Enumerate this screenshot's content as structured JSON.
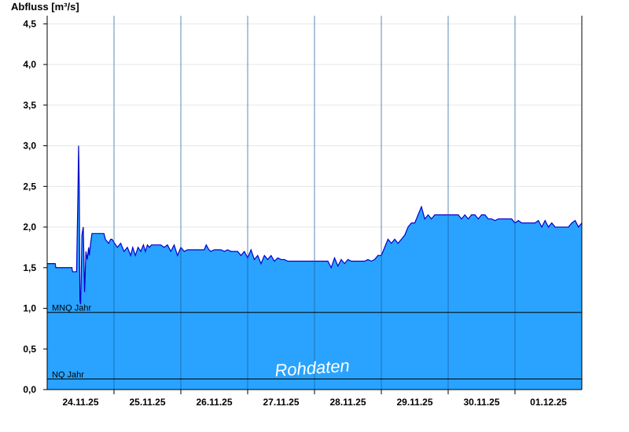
{
  "chart_data": {
    "type": "area",
    "title": "",
    "ylabel": "Abfluss [m³/s]",
    "xlabel": "",
    "ylim": [
      0,
      4.6
    ],
    "xlim": [
      0,
      8.0
    ],
    "yticks": [
      0,
      0.5,
      1.0,
      1.5,
      2.0,
      2.5,
      3.0,
      3.5,
      4.0,
      4.5
    ],
    "ytick_labels": [
      "0,0",
      "0,5",
      "1,0",
      "1,5",
      "2,0",
      "2,5",
      "3,0",
      "3,5",
      "4,0",
      "4,5"
    ],
    "xtick_positions": [
      0.5,
      1.5,
      2.5,
      3.5,
      4.5,
      5.5,
      6.5,
      7.5
    ],
    "xtick_labels": [
      "24.11.25",
      "25.11.25",
      "26.11.25",
      "27.11.25",
      "28.11.25",
      "29.11.25",
      "30.11.25",
      "01.12.25"
    ],
    "day_separators": [
      1,
      2,
      3,
      4,
      5,
      6,
      7
    ],
    "grid": true,
    "series": [
      {
        "name": "",
        "fill_color": "#29a3ff",
        "line_color": "#0000cc",
        "x": [
          0,
          0.12,
          0.13,
          0.37,
          0.38,
          0.44,
          0.46,
          0.47,
          0.48,
          0.49,
          0.5,
          0.51,
          0.52,
          0.54,
          0.55,
          0.56,
          0.58,
          0.6,
          0.62,
          0.63,
          0.65,
          0.67,
          0.68,
          0.7,
          0.85,
          0.87,
          0.92,
          0.95,
          0.97,
          1.05,
          1.1,
          1.15,
          1.2,
          1.25,
          1.28,
          1.32,
          1.36,
          1.4,
          1.44,
          1.47,
          1.5,
          1.53,
          1.56,
          1.6,
          1.65,
          1.7,
          1.75,
          1.8,
          1.85,
          1.9,
          1.95,
          2.0,
          2.05,
          2.1,
          2.15,
          2.2,
          2.35,
          2.38,
          2.42,
          2.45,
          2.5,
          2.6,
          2.65,
          2.7,
          2.75,
          2.85,
          2.9,
          2.95,
          3.0,
          3.05,
          3.1,
          3.15,
          3.2,
          3.25,
          3.3,
          3.35,
          3.4,
          3.45,
          3.5,
          3.55,
          3.6,
          3.7,
          3.8,
          3.9,
          4.0,
          4.2,
          4.25,
          4.3,
          4.35,
          4.4,
          4.45,
          4.5,
          4.55,
          4.6,
          4.65,
          4.7,
          4.75,
          4.8,
          4.85,
          4.9,
          4.95,
          5.0,
          5.05,
          5.1,
          5.15,
          5.2,
          5.25,
          5.3,
          5.35,
          5.4,
          5.45,
          5.5,
          5.55,
          5.6,
          5.65,
          5.7,
          5.75,
          5.8,
          5.85,
          5.9,
          5.95,
          6.0,
          6.05,
          6.1,
          6.15,
          6.2,
          6.25,
          6.3,
          6.35,
          6.4,
          6.45,
          6.5,
          6.55,
          6.6,
          6.65,
          6.7,
          6.75,
          6.8,
          6.85,
          6.9,
          6.95,
          7.0,
          7.05,
          7.1,
          7.15,
          7.2,
          7.25,
          7.3,
          7.35,
          7.4,
          7.45,
          7.5,
          7.55,
          7.6,
          7.65,
          7.7,
          7.75,
          7.8,
          7.85,
          7.9,
          7.95,
          8.0
        ],
        "y": [
          1.55,
          1.55,
          1.5,
          1.5,
          1.45,
          1.45,
          2.4,
          3.0,
          2.5,
          1.1,
          1.05,
          1.4,
          1.9,
          2.0,
          1.6,
          1.2,
          1.7,
          1.6,
          1.75,
          1.65,
          1.8,
          1.92,
          1.92,
          1.92,
          1.92,
          1.85,
          1.8,
          1.85,
          1.85,
          1.75,
          1.8,
          1.7,
          1.75,
          1.65,
          1.75,
          1.65,
          1.75,
          1.7,
          1.78,
          1.7,
          1.78,
          1.75,
          1.78,
          1.78,
          1.78,
          1.78,
          1.75,
          1.78,
          1.7,
          1.78,
          1.65,
          1.75,
          1.7,
          1.72,
          1.72,
          1.72,
          1.72,
          1.78,
          1.72,
          1.7,
          1.72,
          1.72,
          1.7,
          1.72,
          1.7,
          1.7,
          1.65,
          1.7,
          1.62,
          1.72,
          1.6,
          1.65,
          1.55,
          1.65,
          1.6,
          1.65,
          1.58,
          1.62,
          1.6,
          1.6,
          1.58,
          1.58,
          1.58,
          1.58,
          1.58,
          1.58,
          1.5,
          1.62,
          1.52,
          1.6,
          1.55,
          1.6,
          1.58,
          1.58,
          1.58,
          1.58,
          1.58,
          1.6,
          1.58,
          1.6,
          1.65,
          1.65,
          1.75,
          1.85,
          1.8,
          1.85,
          1.8,
          1.85,
          1.9,
          2.0,
          2.05,
          2.05,
          2.15,
          2.25,
          2.1,
          2.15,
          2.1,
          2.15,
          2.15,
          2.15,
          2.15,
          2.15,
          2.15,
          2.15,
          2.15,
          2.1,
          2.15,
          2.1,
          2.15,
          2.15,
          2.1,
          2.15,
          2.15,
          2.1,
          2.1,
          2.08,
          2.1,
          2.1,
          2.1,
          2.1,
          2.1,
          2.05,
          2.08,
          2.05,
          2.05,
          2.05,
          2.05,
          2.05,
          2.08,
          2.0,
          2.08,
          2.0,
          2.05,
          2.0,
          2.0,
          2.0,
          2.0,
          2.0,
          2.05,
          2.08,
          2.0,
          2.05
        ]
      }
    ],
    "reference_lines": [
      {
        "label": "MNQ Jahr",
        "value": 0.95
      },
      {
        "label": "NQ Jahr",
        "value": 0.13
      }
    ],
    "watermark": "Rohdaten"
  }
}
